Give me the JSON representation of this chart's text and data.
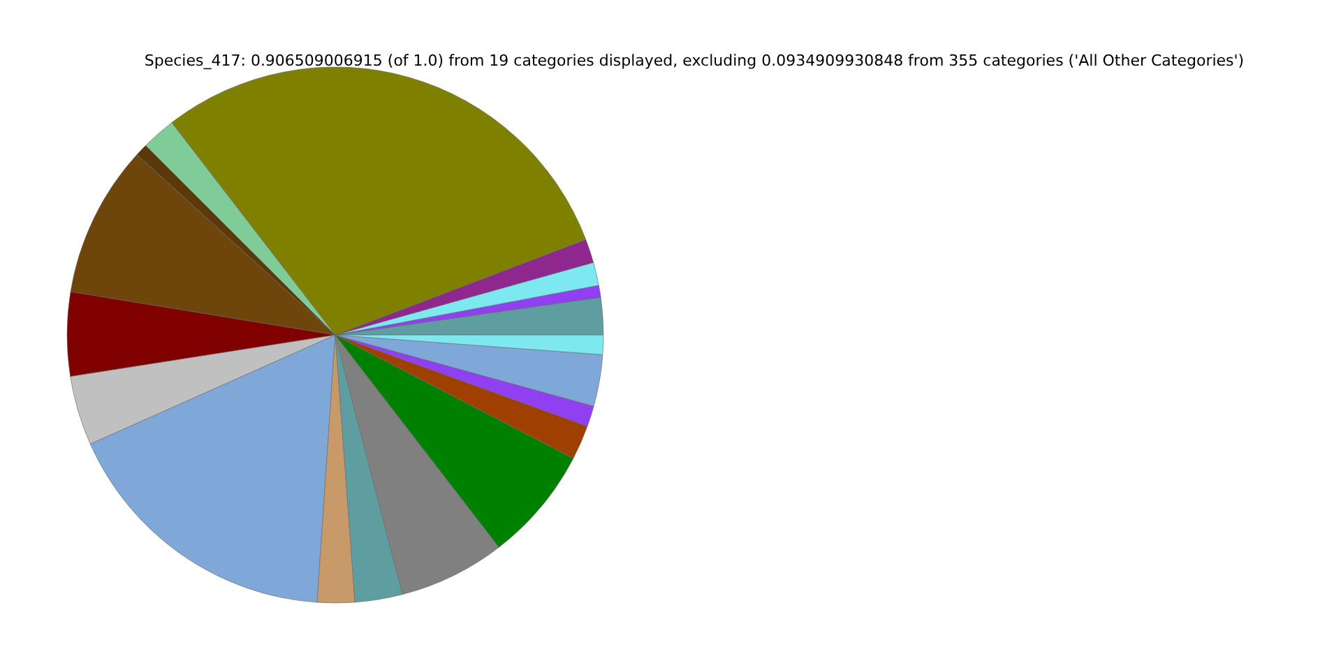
{
  "chart_data": {
    "type": "pie",
    "title": "Species_417: 0.906509006915 (of 1.0) from 19 categories displayed, excluding 0.0934909930848 from 355 categories ('All Other Categories')",
    "categories": [
      null,
      null,
      null,
      null,
      null,
      null,
      null,
      null,
      null,
      null,
      null,
      null,
      null,
      null,
      null,
      null,
      null,
      null,
      null
    ],
    "values": [
      2.25,
      0.72,
      1.39,
      1.44,
      29.64,
      2.06,
      0.75,
      9.17,
      5.06,
      4.19,
      17.25,
      2.25,
      2.86,
      6.42,
      6.94,
      2.08,
      1.25,
      3.11,
      1.17
    ],
    "colors": [
      "#5f9ea0",
      "#9040f0",
      "#7de8f0",
      "#8e278e",
      "#808000",
      "#80cc99",
      "#5a3a0a",
      "#6e460c",
      "#800000",
      "#c0c0c0",
      "#7fa8d8",
      "#c89a6a",
      "#5f9ea0",
      "#808080",
      "#008000",
      "#a04000",
      "#9040f0",
      "#7fa8d8",
      "#7de8f0"
    ]
  }
}
